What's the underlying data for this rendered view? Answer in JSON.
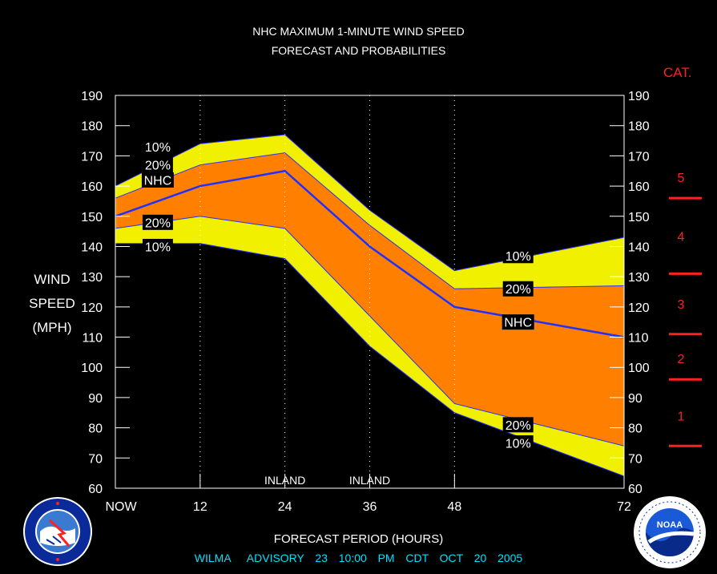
{
  "header": {
    "title_line1": "NHC MAXIMUM 1-MINUTE WIND SPEED",
    "title_line2": "FORECAST AND PROBABILITIES",
    "cat_title": "CAT."
  },
  "axis": {
    "ylabel_lines": [
      "WIND",
      "SPEED",
      "(MPH)"
    ],
    "xlabel": "FORECAST PERIOD (HOURS)"
  },
  "footer": {
    "advisory": "WILMA   ADVISORY  23  10:00  PM  CDT  OCT  20  2005"
  },
  "logos": {
    "left": "national-weather-service-logo",
    "right": "noaa-logo"
  },
  "colors": {
    "outer_band": "#f0f000",
    "inner_band": "#ff8000",
    "nhc_line": "#2030ff",
    "category": "#ff2020",
    "advisory": "#00e0ff"
  },
  "chart_data": {
    "type": "area",
    "xlabel": "FORECAST PERIOD (HOURS)",
    "ylabel": "WIND SPEED (MPH)",
    "ylim": [
      60,
      190
    ],
    "yticks": [
      60,
      70,
      80,
      90,
      100,
      110,
      120,
      130,
      140,
      150,
      160,
      170,
      180,
      190
    ],
    "xlim": [
      0,
      72
    ],
    "xticks": [
      {
        "value": 0,
        "label": "NOW"
      },
      {
        "value": 12,
        "label": "12"
      },
      {
        "value": 24,
        "label": "24"
      },
      {
        "value": 36,
        "label": "36"
      },
      {
        "value": 48,
        "label": "48"
      },
      {
        "value": 72,
        "label": "72"
      }
    ],
    "inland_markers": [
      {
        "x": 24,
        "label": "INLAND"
      },
      {
        "x": 36,
        "label": "INLAND"
      }
    ],
    "x": [
      0,
      12,
      24,
      36,
      48,
      72
    ],
    "series": [
      {
        "name": "10%",
        "values": [
          160,
          174,
          177,
          152,
          132,
          143
        ]
      },
      {
        "name": "20%",
        "values": [
          156,
          167,
          171,
          147,
          126,
          127
        ]
      },
      {
        "name": "NHC",
        "values": [
          150,
          160,
          165,
          140,
          120,
          110
        ]
      },
      {
        "name": "20%",
        "values": [
          146,
          150,
          146,
          117,
          88,
          74
        ]
      },
      {
        "name": "10%",
        "values": [
          141,
          141,
          136,
          107,
          85,
          64
        ]
      }
    ],
    "series_labels": [
      {
        "text": "10%",
        "x": 6,
        "y": 173
      },
      {
        "text": "20%",
        "x": 6,
        "y": 167
      },
      {
        "text": "NHC",
        "x": 6,
        "y": 162
      },
      {
        "text": "20%",
        "x": 6,
        "y": 148
      },
      {
        "text": "10%",
        "x": 6,
        "y": 140
      },
      {
        "text": "10%",
        "x": 57,
        "y": 137
      },
      {
        "text": "20%",
        "x": 57,
        "y": 126
      },
      {
        "text": "NHC",
        "x": 57,
        "y": 115
      },
      {
        "text": "20%",
        "x": 57,
        "y": 81
      },
      {
        "text": "10%",
        "x": 57,
        "y": 75
      }
    ],
    "categories": {
      "labels": [
        {
          "text": "5",
          "y": 163
        },
        {
          "text": "4",
          "y": 143.5
        },
        {
          "text": "3",
          "y": 121
        },
        {
          "text": "2",
          "y": 103
        },
        {
          "text": "1",
          "y": 84
        }
      ],
      "thresholds": [
        156,
        131,
        111,
        96,
        74
      ]
    }
  }
}
